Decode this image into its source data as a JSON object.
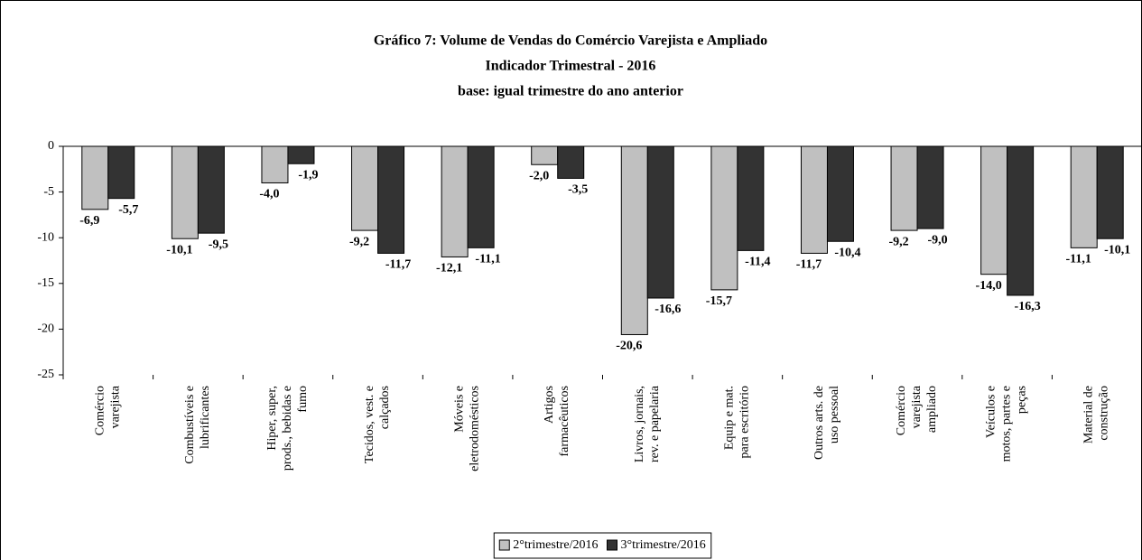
{
  "chart_data": {
    "type": "bar",
    "title": "Gráfico 7: Volume de Vendas do Comércio Varejista e Ampliado",
    "subtitle": "Indicador Trimestral - 2016",
    "subtitle2": "base: igual trimestre do ano anterior",
    "categories": [
      "Comércio\nvarejista",
      "Combustíveis e\nlubrificantes",
      "Hiper, super,\nprods., bebidas e\nfumo",
      "Tecidos, vest. e\ncalçados",
      "Móveis e\neletrodomésticos",
      "Artigos\nfarmacêuticos",
      "Livros, jornais,\nrev. e papelaria",
      "Equip e mat.\npara escritório",
      "Outros arts. de\nuso pessoal",
      "Comércio\nvarejista\nampliado",
      "Veículos e\nmotos, partes e\npeças",
      "Material de\nconstrução"
    ],
    "series": [
      {
        "name": "2°trimestre/2016",
        "color": "#c0c0c0",
        "values": [
          -6.9,
          -10.1,
          -4.0,
          -9.2,
          -12.1,
          -2.0,
          -20.6,
          -15.7,
          -11.7,
          -9.2,
          -14.0,
          -11.1
        ],
        "value_labels": [
          "-6,9",
          "-10,1",
          "-4,0",
          "-9,2",
          "-12,1",
          "-2,0",
          "-20,6",
          "-15,7",
          "-11,7",
          "-9,2",
          "-14,0",
          "-11,1"
        ]
      },
      {
        "name": "3°trimestre/2016",
        "color": "#333333",
        "values": [
          -5.7,
          -9.5,
          -1.9,
          -11.7,
          -11.1,
          -3.5,
          -16.6,
          -11.4,
          -10.4,
          -9.0,
          -16.3,
          -10.1
        ],
        "value_labels": [
          "-5,7",
          "-9,5",
          "-1,9",
          "-11,7",
          "-11,1",
          "-3,5",
          "-16,6",
          "-11,4",
          "-10,4",
          "-9,0",
          "-16,3",
          "-10,1"
        ]
      }
    ],
    "ylim": [
      -25,
      0
    ],
    "yticks": [
      0,
      -5,
      -10,
      -15,
      -20,
      -25
    ],
    "grid": false,
    "legend": "bottom"
  }
}
